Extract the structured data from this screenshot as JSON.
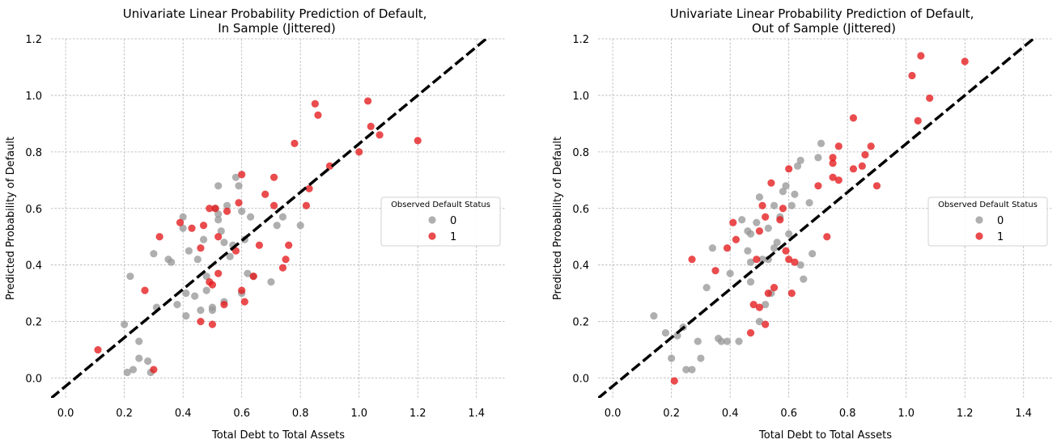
{
  "colors": {
    "class0": "#999999",
    "class1": "#e41a1c",
    "grid": "#b0b0b0",
    "fit_line": "#000000"
  },
  "chart_data": [
    {
      "type": "scatter",
      "title": "Univariate Linear Probability Prediction of Default,\nIn Sample (Jittered)",
      "xlabel": "Total Debt to Total Assets",
      "ylabel": "Predicted Probability of Default",
      "xlim": [
        -0.05,
        1.5
      ],
      "ylim": [
        -0.07,
        1.2
      ],
      "xticks": [
        "0.0",
        "0.2",
        "0.4",
        "0.6",
        "0.8",
        "1.0",
        "1.2",
        "1.4"
      ],
      "yticks": [
        "0.0",
        "0.2",
        "0.4",
        "0.6",
        "0.8",
        "1.0",
        "1.2"
      ],
      "grid": true,
      "legend": {
        "title": "Observed Default Status",
        "position": "right",
        "entries": [
          "0",
          "1"
        ]
      },
      "fit_line": {
        "style": "dashed",
        "slope": 0.8572,
        "intercept": -0.0285
      },
      "series": [
        {
          "name": "0",
          "points": [
            [
              0.2,
              0.19
            ],
            [
              0.21,
              0.02
            ],
            [
              0.22,
              0.36
            ],
            [
              0.23,
              0.03
            ],
            [
              0.25,
              0.13
            ],
            [
              0.25,
              0.07
            ],
            [
              0.28,
              0.06
            ],
            [
              0.29,
              0.02
            ],
            [
              0.3,
              0.44
            ],
            [
              0.31,
              0.25
            ],
            [
              0.35,
              0.42
            ],
            [
              0.36,
              0.41
            ],
            [
              0.38,
              0.26
            ],
            [
              0.4,
              0.53
            ],
            [
              0.4,
              0.57
            ],
            [
              0.41,
              0.3
            ],
            [
              0.41,
              0.22
            ],
            [
              0.42,
              0.45
            ],
            [
              0.44,
              0.29
            ],
            [
              0.45,
              0.42
            ],
            [
              0.46,
              0.24
            ],
            [
              0.47,
              0.49
            ],
            [
              0.48,
              0.31
            ],
            [
              0.48,
              0.36
            ],
            [
              0.5,
              0.25
            ],
            [
              0.5,
              0.24
            ],
            [
              0.51,
              0.6
            ],
            [
              0.52,
              0.68
            ],
            [
              0.52,
              0.58
            ],
            [
              0.52,
              0.56
            ],
            [
              0.53,
              0.52
            ],
            [
              0.54,
              0.48
            ],
            [
              0.54,
              0.27
            ],
            [
              0.55,
              0.61
            ],
            [
              0.56,
              0.43
            ],
            [
              0.57,
              0.47
            ],
            [
              0.58,
              0.71
            ],
            [
              0.59,
              0.68
            ],
            [
              0.6,
              0.59
            ],
            [
              0.6,
              0.3
            ],
            [
              0.61,
              0.49
            ],
            [
              0.62,
              0.37
            ],
            [
              0.63,
              0.57
            ],
            [
              0.64,
              0.36
            ],
            [
              0.7,
              0.34
            ],
            [
              0.72,
              0.54
            ],
            [
              0.74,
              0.57
            ],
            [
              0.8,
              0.54
            ]
          ]
        },
        {
          "name": "1",
          "points": [
            [
              0.11,
              0.1
            ],
            [
              0.27,
              0.31
            ],
            [
              0.3,
              0.03
            ],
            [
              0.32,
              0.5
            ],
            [
              0.39,
              0.55
            ],
            [
              0.43,
              0.53
            ],
            [
              0.46,
              0.46
            ],
            [
              0.46,
              0.2
            ],
            [
              0.47,
              0.54
            ],
            [
              0.49,
              0.6
            ],
            [
              0.49,
              0.34
            ],
            [
              0.5,
              0.33
            ],
            [
              0.5,
              0.19
            ],
            [
              0.51,
              0.6
            ],
            [
              0.52,
              0.5
            ],
            [
              0.52,
              0.37
            ],
            [
              0.54,
              0.26
            ],
            [
              0.55,
              0.59
            ],
            [
              0.58,
              0.45
            ],
            [
              0.59,
              0.62
            ],
            [
              0.6,
              0.31
            ],
            [
              0.6,
              0.72
            ],
            [
              0.61,
              0.27
            ],
            [
              0.64,
              0.36
            ],
            [
              0.66,
              0.47
            ],
            [
              0.68,
              0.65
            ],
            [
              0.71,
              0.71
            ],
            [
              0.71,
              0.61
            ],
            [
              0.74,
              0.39
            ],
            [
              0.75,
              0.42
            ],
            [
              0.76,
              0.47
            ],
            [
              0.78,
              0.83
            ],
            [
              0.82,
              0.61
            ],
            [
              0.83,
              0.67
            ],
            [
              0.85,
              0.97
            ],
            [
              0.86,
              0.93
            ],
            [
              0.9,
              0.75
            ],
            [
              1.0,
              0.8
            ],
            [
              1.03,
              0.98
            ],
            [
              1.04,
              0.89
            ],
            [
              1.07,
              0.86
            ],
            [
              1.2,
              0.84
            ]
          ]
        }
      ]
    },
    {
      "type": "scatter",
      "title": "Univariate Linear Probability Prediction of Default,\nOut of Sample (Jittered)",
      "xlabel": "Total Debt to Total Assets",
      "ylabel": "Predicted Probability of Default",
      "xlim": [
        -0.05,
        1.5
      ],
      "ylim": [
        -0.07,
        1.2
      ],
      "xticks": [
        "0.0",
        "0.2",
        "0.4",
        "0.6",
        "0.8",
        "1.0",
        "1.2",
        "1.4"
      ],
      "yticks": [
        "0.0",
        "0.2",
        "0.4",
        "0.6",
        "0.8",
        "1.0",
        "1.2"
      ],
      "grid": true,
      "legend": {
        "title": "Observed Default Status",
        "position": "right",
        "entries": [
          "0",
          "1"
        ]
      },
      "fit_line": {
        "style": "dashed",
        "slope": 0.8572,
        "intercept": -0.0285
      },
      "series": [
        {
          "name": "0",
          "points": [
            [
              0.14,
              0.22
            ],
            [
              0.18,
              0.16
            ],
            [
              0.2,
              0.07
            ],
            [
              0.22,
              0.15
            ],
            [
              0.24,
              0.18
            ],
            [
              0.25,
              0.03
            ],
            [
              0.27,
              0.03
            ],
            [
              0.29,
              0.13
            ],
            [
              0.3,
              0.07
            ],
            [
              0.32,
              0.32
            ],
            [
              0.34,
              0.46
            ],
            [
              0.36,
              0.14
            ],
            [
              0.37,
              0.13
            ],
            [
              0.39,
              0.13
            ],
            [
              0.4,
              0.37
            ],
            [
              0.43,
              0.13
            ],
            [
              0.44,
              0.56
            ],
            [
              0.46,
              0.52
            ],
            [
              0.46,
              0.45
            ],
            [
              0.47,
              0.34
            ],
            [
              0.47,
              0.41
            ],
            [
              0.47,
              0.51
            ],
            [
              0.49,
              0.55
            ],
            [
              0.5,
              0.64
            ],
            [
              0.5,
              0.2
            ],
            [
              0.51,
              0.42
            ],
            [
              0.52,
              0.26
            ],
            [
              0.53,
              0.53
            ],
            [
              0.53,
              0.42
            ],
            [
              0.54,
              0.3
            ],
            [
              0.55,
              0.46
            ],
            [
              0.55,
              0.61
            ],
            [
              0.56,
              0.48
            ],
            [
              0.57,
              0.57
            ],
            [
              0.58,
              0.66
            ],
            [
              0.59,
              0.68
            ],
            [
              0.6,
              0.51
            ],
            [
              0.61,
              0.61
            ],
            [
              0.62,
              0.65
            ],
            [
              0.63,
              0.75
            ],
            [
              0.64,
              0.77
            ],
            [
              0.64,
              0.4
            ],
            [
              0.65,
              0.35
            ],
            [
              0.67,
              0.62
            ],
            [
              0.68,
              0.44
            ],
            [
              0.7,
              0.78
            ],
            [
              0.71,
              0.83
            ]
          ]
        },
        {
          "name": "1",
          "points": [
            [
              0.21,
              -0.01
            ],
            [
              0.27,
              0.42
            ],
            [
              0.35,
              0.38
            ],
            [
              0.39,
              0.46
            ],
            [
              0.41,
              0.55
            ],
            [
              0.42,
              0.49
            ],
            [
              0.47,
              0.16
            ],
            [
              0.48,
              0.26
            ],
            [
              0.49,
              0.42
            ],
            [
              0.5,
              0.25
            ],
            [
              0.5,
              0.52
            ],
            [
              0.51,
              0.61
            ],
            [
              0.52,
              0.19
            ],
            [
              0.52,
              0.57
            ],
            [
              0.53,
              0.3
            ],
            [
              0.54,
              0.69
            ],
            [
              0.55,
              0.32
            ],
            [
              0.57,
              0.56
            ],
            [
              0.58,
              0.6
            ],
            [
              0.59,
              0.45
            ],
            [
              0.6,
              0.42
            ],
            [
              0.6,
              0.74
            ],
            [
              0.61,
              0.3
            ],
            [
              0.62,
              0.41
            ],
            [
              0.7,
              0.68
            ],
            [
              0.73,
              0.5
            ],
            [
              0.75,
              0.78
            ],
            [
              0.75,
              0.71
            ],
            [
              0.75,
              0.76
            ],
            [
              0.77,
              0.7
            ],
            [
              0.77,
              0.82
            ],
            [
              0.82,
              0.92
            ],
            [
              0.82,
              0.74
            ],
            [
              0.85,
              0.75
            ],
            [
              0.86,
              0.79
            ],
            [
              0.88,
              0.82
            ],
            [
              0.9,
              0.68
            ],
            [
              1.02,
              1.07
            ],
            [
              1.04,
              0.91
            ],
            [
              1.05,
              1.14
            ],
            [
              1.08,
              0.99
            ],
            [
              1.2,
              1.12
            ]
          ]
        }
      ]
    }
  ]
}
